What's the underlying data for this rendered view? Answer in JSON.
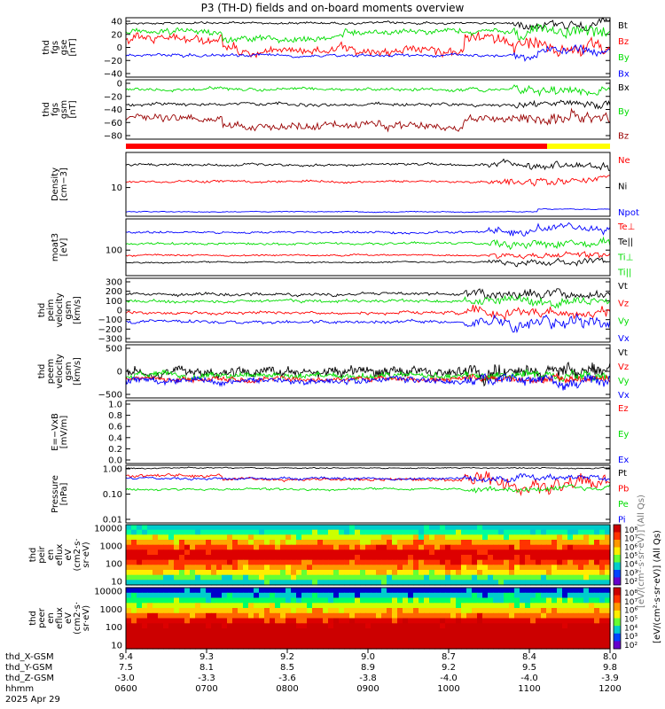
{
  "title": "P3 (TH-D) fields and on-board moments overview",
  "colors": {
    "black": "#000000",
    "red": "#ff0000",
    "green": "#00dd00",
    "blue": "#0000ff",
    "darkred": "#990000",
    "yellow": "#ffff00"
  },
  "chart_data": {
    "type": "line",
    "time_axis": {
      "hhmm": [
        "0600",
        "0700",
        "0800",
        "0900",
        "1000",
        "1100",
        "1200"
      ],
      "date": "2025 Apr 29",
      "orbit_labels": [
        "thd_X-GSM",
        "thd_Y-GSM",
        "thd_Z-GSM",
        "hhmm"
      ],
      "x_gsm": [
        "9.4",
        "9.3",
        "9.2",
        "9.0",
        "8.7",
        "8.4",
        "8.0"
      ],
      "y_gsm": [
        "7.5",
        "8.1",
        "8.5",
        "8.9",
        "9.2",
        "9.5",
        "9.8"
      ],
      "z_gsm": [
        "-3.0",
        "-3.3",
        "-3.6",
        "-3.8",
        "-4.0",
        "-4.0",
        "-3.9"
      ]
    },
    "panels": [
      {
        "ylabel": [
          "thd",
          "fgs",
          "gse",
          "[nT]"
        ],
        "yticks": [
          "40",
          "20",
          "0",
          "−20",
          "−40"
        ],
        "legend": [
          {
            "name": "Bt",
            "color": "#000000"
          },
          {
            "name": "Bz",
            "color": "#ff0000"
          },
          {
            "name": "By",
            "color": "#00dd00"
          },
          {
            "name": "Bx",
            "color": "#0000ff"
          }
        ]
      },
      {
        "ylabel": [
          "thd",
          "fgs",
          "gsm",
          "[nT]"
        ],
        "yticks": [
          "0",
          "−20",
          "−40",
          "−60",
          "−80"
        ],
        "legend": [
          {
            "name": "Bx",
            "color": "#000000"
          },
          {
            "name": "By",
            "color": "#00dd00"
          },
          {
            "name": "Bz",
            "color": "#990000"
          }
        ]
      },
      {
        "ylabel": [
          "Density",
          "[cm−3]"
        ],
        "yticks": [
          "10"
        ],
        "legend": [
          {
            "name": "Ne",
            "color": "#ff0000"
          },
          {
            "name": "Ni",
            "color": "#000000"
          },
          {
            "name": "Npot",
            "color": "#0000ff"
          }
        ]
      },
      {
        "ylabel": [
          "moat3",
          "[eV]"
        ],
        "yticks": [
          "100"
        ],
        "legend": [
          {
            "name": "Te⊥",
            "color": "#ff0000"
          },
          {
            "name": "Te||",
            "color": "#000000"
          },
          {
            "name": "Ti⊥",
            "color": "#00dd00"
          },
          {
            "name": "Ti||",
            "color": "#00dd00"
          }
        ]
      },
      {
        "ylabel": [
          "thd",
          "peim",
          "velocity",
          "gsm",
          "[km/s]"
        ],
        "yticks": [
          "300",
          "200",
          "100",
          "0",
          "−100",
          "−200",
          "−300"
        ],
        "legend": [
          {
            "name": "Vt",
            "color": "#000000"
          },
          {
            "name": "Vz",
            "color": "#ff0000"
          },
          {
            "name": "Vy",
            "color": "#00dd00"
          },
          {
            "name": "Vx",
            "color": "#0000ff"
          }
        ]
      },
      {
        "ylabel": [
          "thd",
          "peem",
          "velocity",
          "gsm",
          "[km/s]"
        ],
        "yticks": [
          "500",
          "0",
          "−500"
        ],
        "legend": [
          {
            "name": "Vt",
            "color": "#000000"
          },
          {
            "name": "Vz",
            "color": "#ff0000"
          },
          {
            "name": "Vy",
            "color": "#00dd00"
          },
          {
            "name": "Vx",
            "color": "#0000ff"
          }
        ]
      },
      {
        "ylabel": [
          "E=−VxB",
          "[mV/m]"
        ],
        "yticks": [
          "1.0",
          "0.8",
          "0.6",
          "0.4",
          "0.2",
          "0.0"
        ],
        "legend": [
          {
            "name": "Ez",
            "color": "#ff0000"
          },
          {
            "name": "Ey",
            "color": "#00dd00"
          },
          {
            "name": "Ex",
            "color": "#0000ff"
          }
        ]
      },
      {
        "ylabel": [
          "Pressure",
          "[nPa]"
        ],
        "yticks": [
          "1.00",
          "0.10",
          "0.01"
        ],
        "legend": [
          {
            "name": "Pt",
            "color": "#000000"
          },
          {
            "name": "Pb",
            "color": "#ff0000"
          },
          {
            "name": "Pe",
            "color": "#00dd00"
          },
          {
            "name": "Pi",
            "color": "#0000ff"
          }
        ]
      },
      {
        "ylabel": [
          "thd",
          "peir",
          "en",
          "eflux",
          "eV",
          "(cm2·s·",
          "sr·eV)"
        ],
        "yticks": [
          "10000",
          "1000",
          "100",
          "10"
        ],
        "colorbar_ticks": [
          "10⁸",
          "10⁷",
          "10⁶",
          "10⁵",
          "10⁴",
          "10³",
          "10²"
        ]
      },
      {
        "ylabel": [
          "thd",
          "peer",
          "en",
          "eflux",
          "eV",
          "(cm2·s·",
          "sr·eV)"
        ],
        "yticks": [
          "10000",
          "1000",
          "100",
          "10"
        ],
        "colorbar_ticks": [
          "10⁸",
          "10⁷",
          "10⁶",
          "10⁵",
          "10⁴",
          "10³",
          "10²"
        ]
      }
    ],
    "colorbar_label": "[eV/(cm²·s·sr·eV)] (All Qs)",
    "colorbar_label_upper": "[eV/(cm²·s·sr·eV)] (All Qs)"
  }
}
